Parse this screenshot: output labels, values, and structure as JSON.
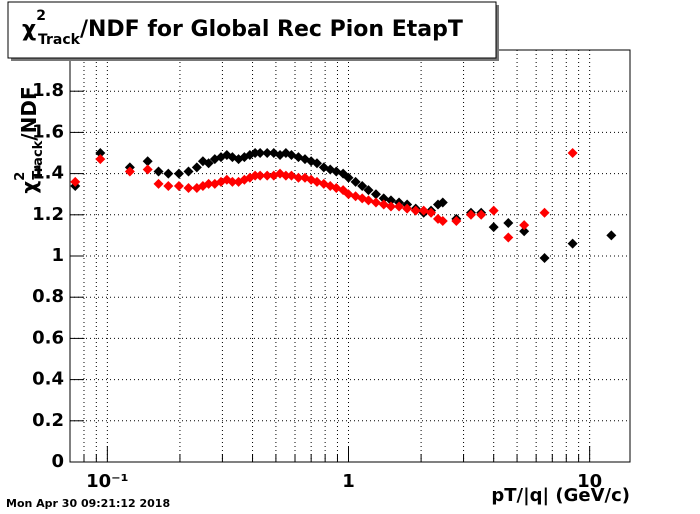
{
  "chart_data": {
    "type": "scatter",
    "title": {
      "symbol": "χ",
      "sup": "2",
      "sub": "Track",
      "text": "/NDF for Global Rec Pion EtapT"
    },
    "ylabel": {
      "symbol": "χ",
      "sup": "2",
      "sub": "Track",
      "text": "/NDF"
    },
    "xlabel": "pT/|q| (GeV/c)",
    "footer": "Mon Apr 30 09:21:12 2018",
    "xlog": true,
    "grid": true,
    "xlim": [
      0.07,
      14.7
    ],
    "ylim": [
      0,
      2
    ],
    "xticks": [
      {
        "value": 0.1,
        "label": "10⁻¹"
      },
      1,
      10
    ],
    "xminorticks": [
      0.08,
      0.09,
      0.2,
      0.3,
      0.4,
      0.5,
      0.6,
      0.7,
      0.8,
      0.9,
      2,
      3,
      4,
      5,
      6,
      7,
      8,
      9
    ],
    "yticks": [
      0,
      0.2,
      0.4,
      0.6,
      0.8,
      1,
      1.2,
      1.4,
      1.6,
      1.8
    ],
    "series": [
      {
        "color": "#000000",
        "x": [
          0.0736,
          0.0935,
          0.124,
          0.147,
          0.163,
          0.179,
          0.198,
          0.217,
          0.235,
          0.249,
          0.263,
          0.279,
          0.296,
          0.313,
          0.33,
          0.35,
          0.37,
          0.39,
          0.41,
          0.43,
          0.46,
          0.49,
          0.52,
          0.55,
          0.58,
          0.62,
          0.66,
          0.7,
          0.74,
          0.79,
          0.84,
          0.89,
          0.95,
          1.0,
          1.07,
          1.14,
          1.21,
          1.3,
          1.4,
          1.5,
          1.62,
          1.75,
          1.9,
          2.05,
          2.2,
          2.35,
          2.46,
          2.8,
          3.22,
          3.55,
          4.0,
          4.6,
          5.35,
          6.5,
          8.5,
          12.3
        ],
        "values": [
          1.34,
          1.5,
          1.43,
          1.46,
          1.41,
          1.4,
          1.4,
          1.41,
          1.43,
          1.46,
          1.45,
          1.47,
          1.48,
          1.49,
          1.48,
          1.47,
          1.48,
          1.49,
          1.5,
          1.5,
          1.5,
          1.5,
          1.49,
          1.5,
          1.49,
          1.48,
          1.47,
          1.46,
          1.45,
          1.43,
          1.42,
          1.41,
          1.4,
          1.38,
          1.36,
          1.34,
          1.32,
          1.3,
          1.28,
          1.27,
          1.26,
          1.25,
          1.23,
          1.21,
          1.22,
          1.25,
          1.26,
          1.18,
          1.21,
          1.21,
          1.14,
          1.16,
          1.12,
          0.99,
          1.06,
          1.1
        ]
      },
      {
        "color": "#ff0000",
        "x": [
          0.0736,
          0.0935,
          0.124,
          0.147,
          0.163,
          0.179,
          0.198,
          0.217,
          0.235,
          0.249,
          0.263,
          0.279,
          0.296,
          0.313,
          0.33,
          0.35,
          0.37,
          0.39,
          0.41,
          0.43,
          0.46,
          0.49,
          0.52,
          0.55,
          0.58,
          0.62,
          0.66,
          0.7,
          0.74,
          0.79,
          0.84,
          0.89,
          0.95,
          1.0,
          1.07,
          1.14,
          1.21,
          1.3,
          1.4,
          1.5,
          1.62,
          1.75,
          1.9,
          2.05,
          2.2,
          2.35,
          2.46,
          2.8,
          3.22,
          3.55,
          4.0,
          4.6,
          5.35,
          6.5,
          8.5
        ],
        "values": [
          1.36,
          1.47,
          1.41,
          1.42,
          1.35,
          1.34,
          1.34,
          1.33,
          1.33,
          1.34,
          1.35,
          1.35,
          1.36,
          1.37,
          1.36,
          1.36,
          1.37,
          1.38,
          1.39,
          1.39,
          1.39,
          1.39,
          1.4,
          1.39,
          1.39,
          1.38,
          1.38,
          1.37,
          1.36,
          1.35,
          1.34,
          1.33,
          1.32,
          1.3,
          1.29,
          1.28,
          1.27,
          1.26,
          1.25,
          1.24,
          1.24,
          1.23,
          1.22,
          1.22,
          1.21,
          1.18,
          1.17,
          1.17,
          1.2,
          1.2,
          1.22,
          1.09,
          1.15,
          1.21,
          1.5
        ]
      }
    ]
  }
}
